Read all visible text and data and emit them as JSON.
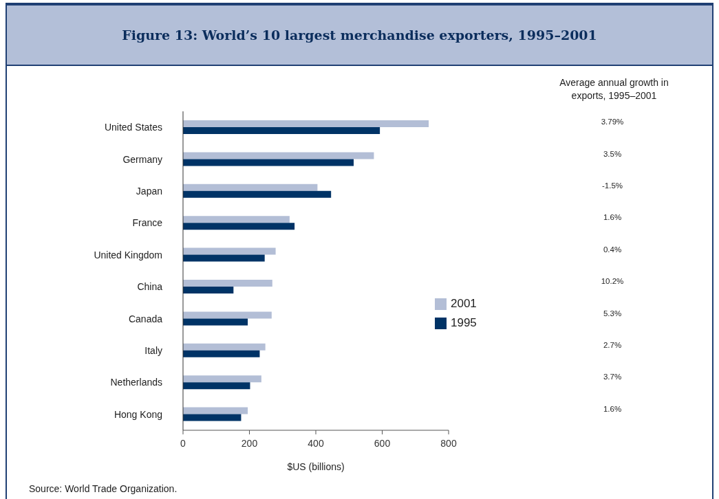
{
  "chart_data": {
    "type": "bar",
    "orientation": "horizontal",
    "title": "Figure 13: World’s 10 largest merchandise exporters, 1995–2001",
    "xlabel": "$US (billions)",
    "categories": [
      "United States",
      "Germany",
      "Japan",
      "France",
      "United Kingdom",
      "China",
      "Canada",
      "Italy",
      "Netherlands",
      "Hong Kong"
    ],
    "series": [
      {
        "name": "2001",
        "color": "#b3bed6",
        "values": [
          740,
          575,
          405,
          321,
          279,
          269,
          267,
          248,
          236,
          195
        ]
      },
      {
        "name": "1995",
        "color": "#003366",
        "values": [
          593,
          514,
          446,
          336,
          246,
          152,
          195,
          231,
          202,
          175
        ]
      }
    ],
    "xlim": [
      0,
      800
    ],
    "xticks": [
      0,
      200,
      400,
      600,
      800
    ],
    "grid": false,
    "legend": "right",
    "annotations": [
      "Average annual growth in exports, 1995–2001",
      "3.79%",
      "3.5%",
      "-1.5%",
      "1.6%",
      "0.4%",
      "10.2%",
      "5.3%",
      "2.7%",
      "3.7%",
      "1.6%",
      "Source: World Trade Organization."
    ]
  }
}
